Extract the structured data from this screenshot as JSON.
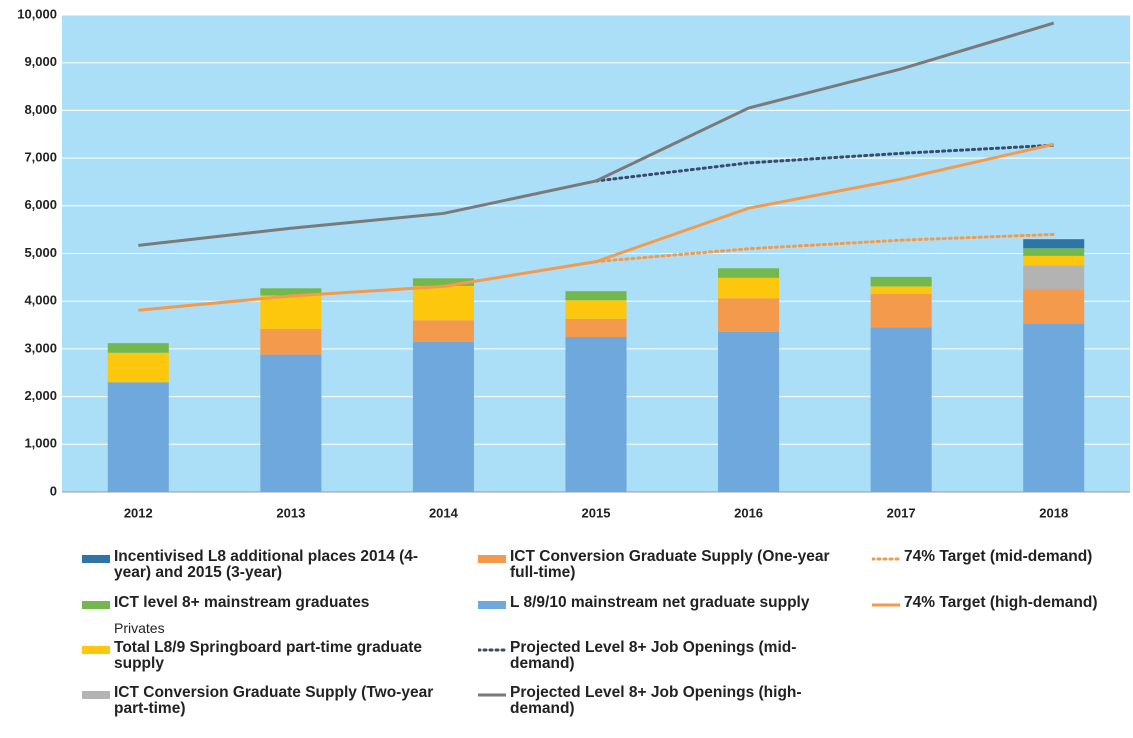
{
  "chart_data": {
    "type": "bar",
    "categories": [
      "2012",
      "2013",
      "2014",
      "2015",
      "2016",
      "2017",
      "2018"
    ],
    "ylim": [
      0,
      10000
    ],
    "yticks": [
      0,
      {
        "value": 1000,
        "label": "1,000"
      },
      {
        "value": 2000,
        "label": "2,000"
      },
      {
        "value": 3000,
        "label": "3,000"
      },
      {
        "value": 4000,
        "label": "4,000"
      },
      {
        "value": 5000,
        "label": "5,000"
      },
      {
        "value": 6000,
        "label": "6,000"
      },
      {
        "value": 7000,
        "label": "7,000"
      },
      {
        "value": 8000,
        "label": "8,000"
      },
      {
        "value": 9000,
        "label": "9,000"
      },
      {
        "value": 10000,
        "label": "10,000"
      }
    ],
    "grid": true,
    "background": "#aadff7",
    "annotations": [
      "Privates"
    ],
    "series": [
      {
        "name": "Incentivised L8 additional places 2014 (4-year) and 2015 (3-year)",
        "kind": "bar",
        "color": "#2e75a6",
        "values": [
          0,
          0,
          0,
          0,
          0,
          0,
          190
        ]
      },
      {
        "name": "ICT level 8+ mainstream graduates",
        "kind": "bar",
        "color": "#72b84c",
        "values": [
          200,
          150,
          160,
          190,
          200,
          200,
          160
        ]
      },
      {
        "name": "Total L8/9  Springboard part-time graduate supply",
        "kind": "bar",
        "color": "#fcc70d",
        "values": [
          620,
          700,
          720,
          390,
          430,
          160,
          200
        ]
      },
      {
        "name": "ICT Conversion Graduate Supply (Two-year part-time)",
        "kind": "bar",
        "color": "#b3b3b3",
        "values": [
          0,
          0,
          0,
          0,
          0,
          0,
          500
        ]
      },
      {
        "name": "ICT Conversion Graduate Supply (One-year full-time)",
        "kind": "bar",
        "color": "#f39a4d",
        "values": [
          0,
          540,
          450,
          380,
          700,
          700,
          720
        ]
      },
      {
        "name": "L 8/9/10 mainstream net graduate supply",
        "kind": "bar",
        "color": "#6fa8dc",
        "values": [
          2300,
          2880,
          3150,
          3250,
          3360,
          3450,
          3530
        ]
      },
      {
        "name": "Projected Level 8+ Job Openings (mid-demand)",
        "kind": "line",
        "style": "dotted",
        "color": "#3a4a6b",
        "values": [
          null,
          null,
          null,
          6520,
          6900,
          7100,
          7270
        ]
      },
      {
        "name": "Projected Level 8+ Job Openings (high-demand)",
        "kind": "line",
        "style": "solid",
        "color": "#7a7a7a",
        "values": [
          5170,
          5530,
          5840,
          6520,
          8050,
          8870,
          9830
        ]
      },
      {
        "name": "74% Target (mid-demand)",
        "kind": "line",
        "style": "dotted",
        "color": "#f39a4d",
        "values": [
          null,
          null,
          null,
          4830,
          5100,
          5280,
          5400
        ]
      },
      {
        "name": "74% Target (high-demand)",
        "kind": "line",
        "style": "solid",
        "color": "#f39a4d",
        "values": [
          3810,
          4110,
          4310,
          4830,
          5950,
          6560,
          7290
        ]
      }
    ]
  }
}
